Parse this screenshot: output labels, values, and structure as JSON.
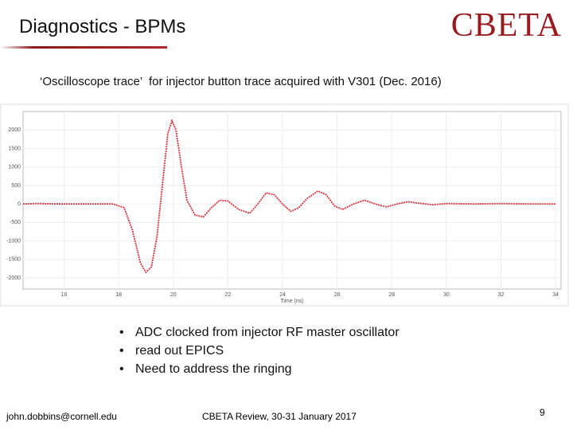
{
  "header": {
    "title": "Diagnostics - BPMs",
    "logo": "CBETA"
  },
  "caption": "‘Oscilloscope trace’  for injector button trace acquired with V301 (Dec. 2016)",
  "chart_data": {
    "type": "line",
    "x_label": "Time (ns)",
    "x": [
      14.5,
      15,
      16,
      17,
      17.8,
      18.2,
      18.5,
      18.8,
      19.0,
      19.2,
      19.4,
      19.6,
      19.8,
      19.95,
      20.1,
      20.3,
      20.5,
      20.8,
      21.1,
      21.4,
      21.7,
      22,
      22.4,
      22.8,
      23.1,
      23.4,
      23.7,
      24,
      24.3,
      24.6,
      24.9,
      25.3,
      25.6,
      25.9,
      26.2,
      26.6,
      27,
      27.4,
      27.8,
      28.2,
      28.6,
      29,
      29.5,
      30,
      31,
      32,
      33,
      34
    ],
    "series": [
      {
        "color": "#d8343c",
        "values": [
          0,
          10,
          0,
          0,
          0,
          -100,
          -700,
          -1600,
          -1850,
          -1700,
          -900,
          500,
          1900,
          2250,
          2000,
          1000,
          100,
          -300,
          -350,
          -100,
          100,
          80,
          -150,
          -250,
          0,
          300,
          250,
          0,
          -200,
          -100,
          150,
          350,
          250,
          -50,
          -150,
          0,
          100,
          0,
          -80,
          0,
          60,
          20,
          -20,
          10,
          0,
          10,
          0,
          0
        ]
      }
    ],
    "xlim": [
      14.5,
      34.2
    ],
    "ylim": [
      -2300,
      2500
    ],
    "xticks": [
      16,
      18,
      20,
      22,
      24,
      26,
      28,
      30,
      32,
      34
    ],
    "yticks": [
      -2000,
      -1500,
      -1000,
      -500,
      0,
      500,
      1000,
      1500,
      2000
    ],
    "grid": true
  },
  "bullets": [
    "ADC clocked from injector RF master oscillator",
    "read out EPICS",
    "Need to address the ringing"
  ],
  "footer": {
    "email": "john.dobbins@cornell.edu",
    "event": "CBETA Review, 30-31 January 2017",
    "page": "9"
  }
}
